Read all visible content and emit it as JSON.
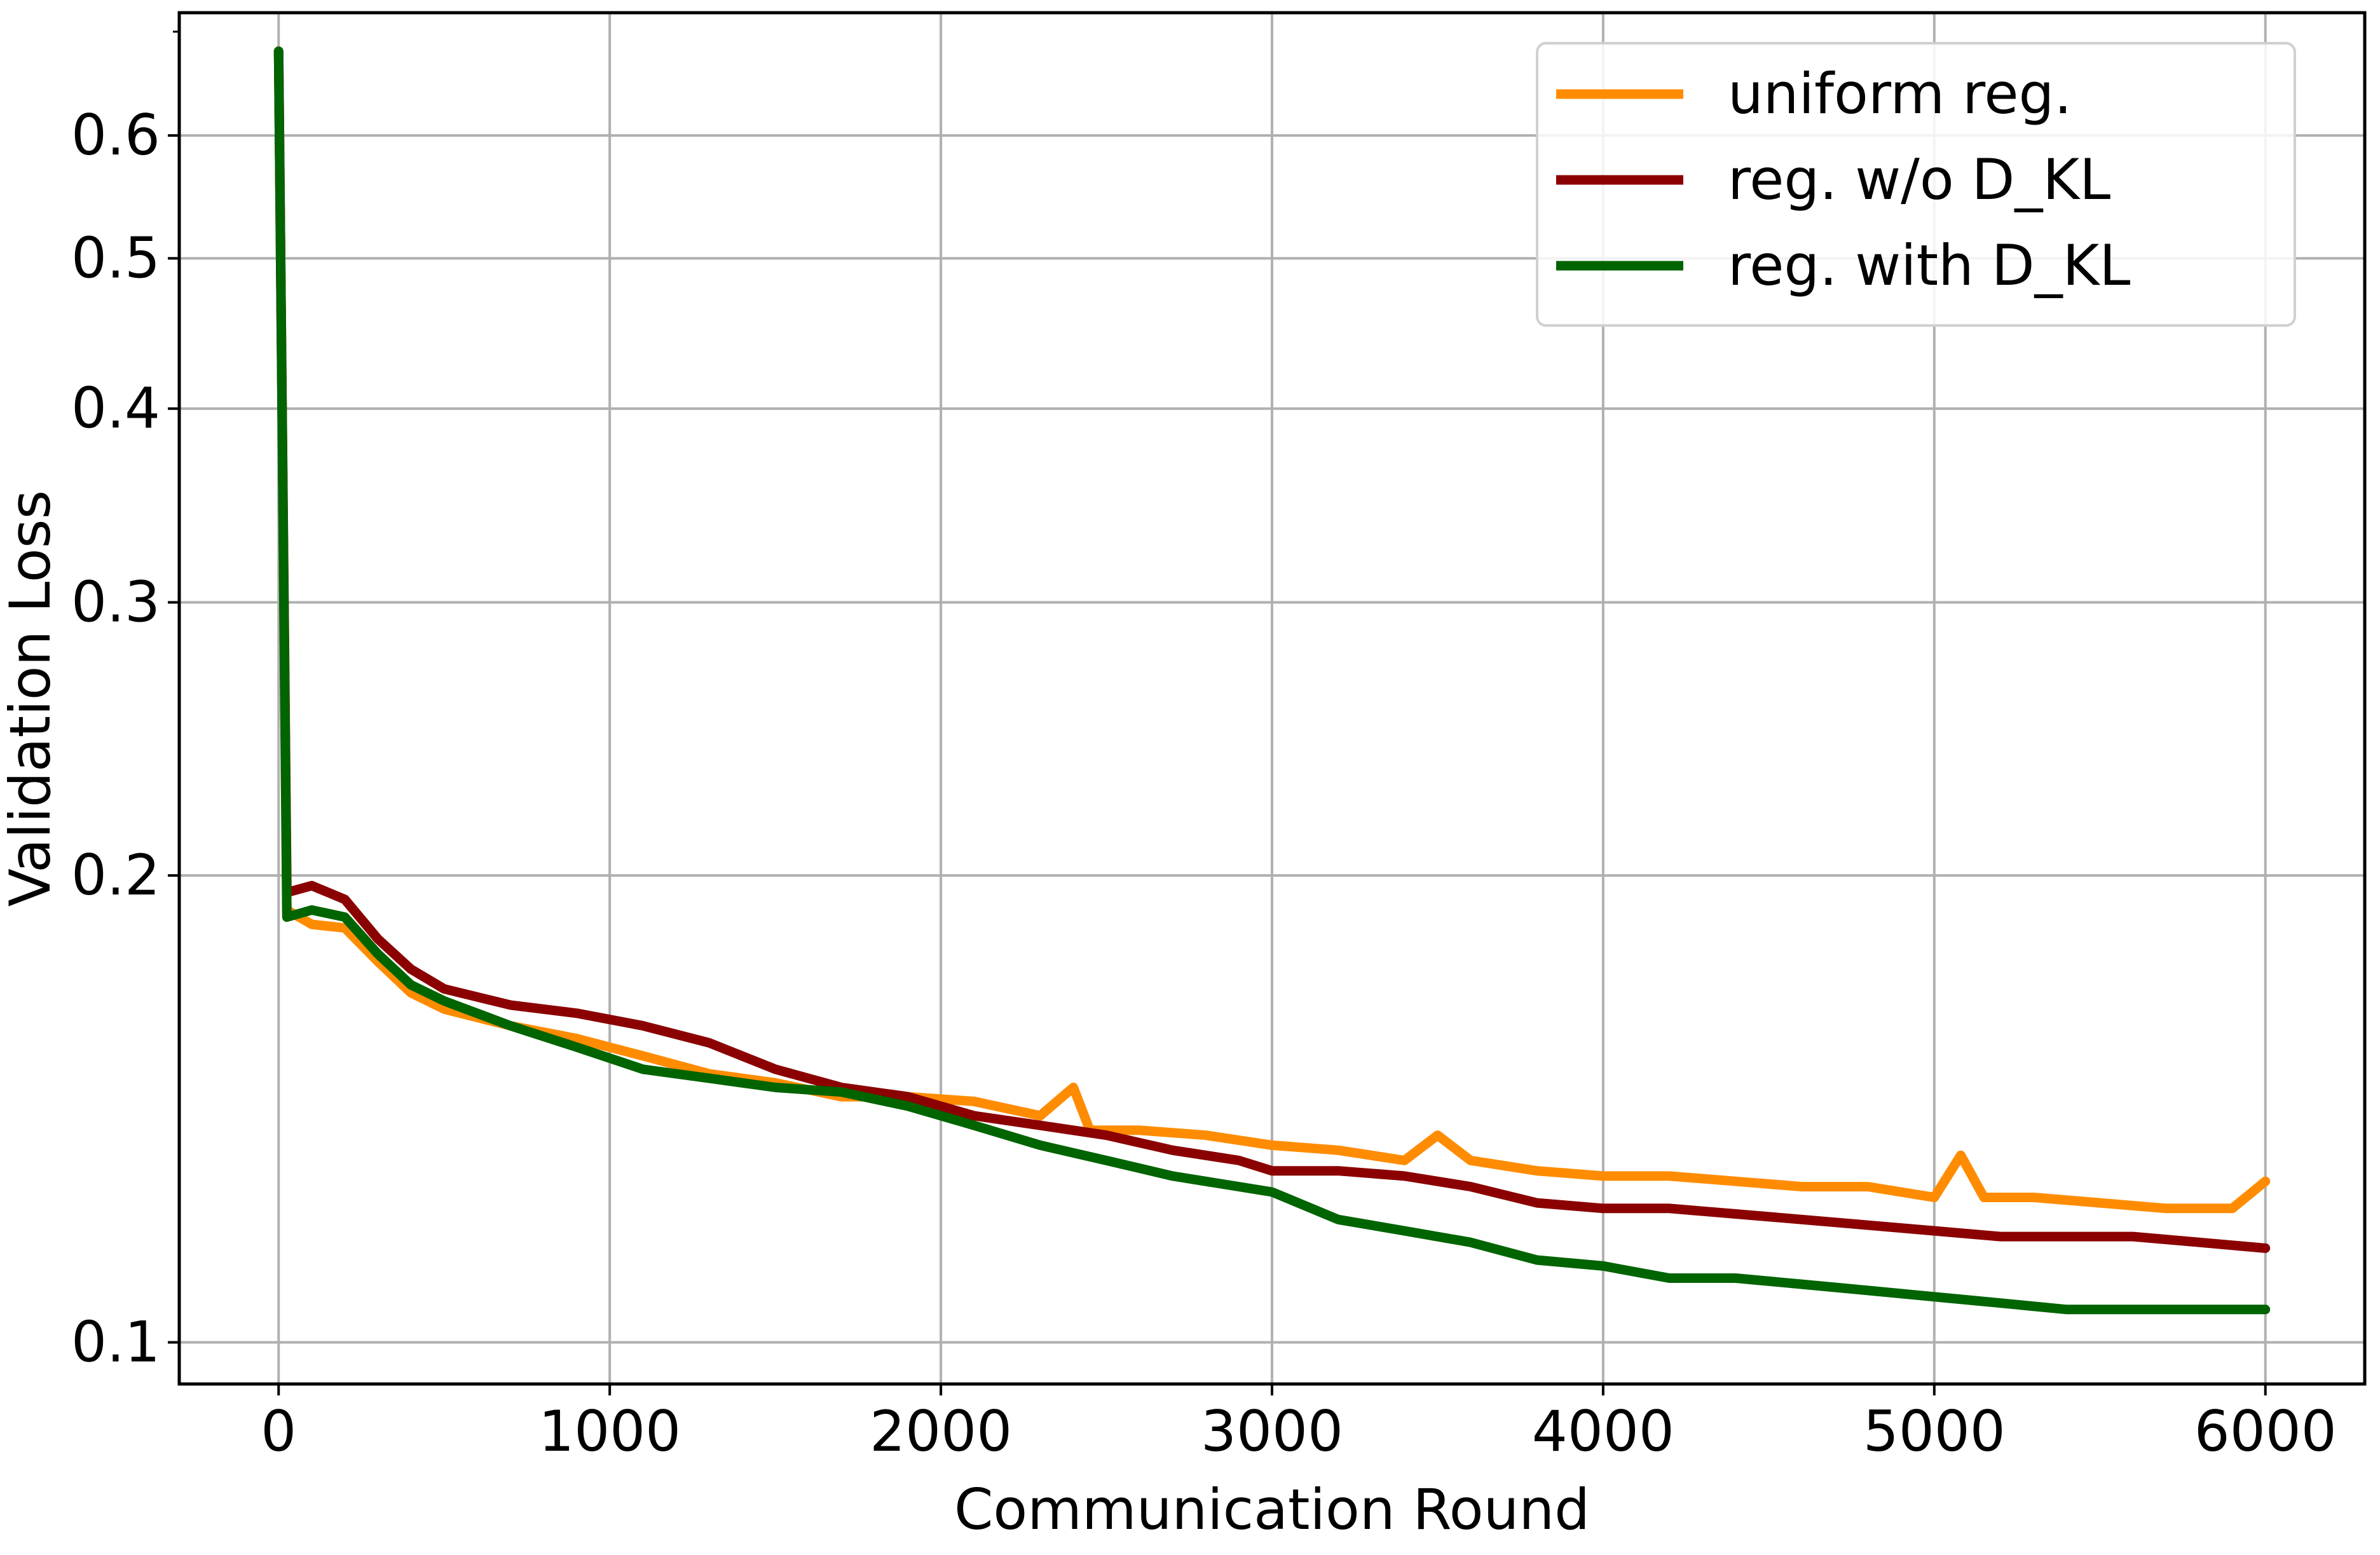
{
  "chart_data": {
    "type": "line",
    "xlabel": "Communication Round",
    "ylabel": "Validation Loss",
    "x_scale": "linear",
    "y_scale": "log",
    "xlim": [
      -300,
      6300
    ],
    "ylim": [
      0.094,
      0.72
    ],
    "x_ticks": [
      0,
      1000,
      2000,
      3000,
      4000,
      5000,
      6000
    ],
    "x_tick_labels": [
      "0",
      "1000",
      "2000",
      "3000",
      "4000",
      "5000",
      "6000"
    ],
    "y_ticks": [
      0.1,
      0.2,
      0.3,
      0.4,
      0.5,
      0.6
    ],
    "y_tick_labels": [
      "0.1",
      "0.2",
      "0.3",
      "0.4",
      "0.5",
      "0.6"
    ],
    "grid": true,
    "legend_position": "top-right",
    "series": [
      {
        "name": "uniform reg.",
        "color": "#FF8C00",
        "points": [
          [
            0,
            0.68
          ],
          [
            25,
            0.19
          ],
          [
            100,
            0.186
          ],
          [
            200,
            0.185
          ],
          [
            300,
            0.176
          ],
          [
            400,
            0.168
          ],
          [
            500,
            0.164
          ],
          [
            700,
            0.16
          ],
          [
            900,
            0.157
          ],
          [
            1100,
            0.153
          ],
          [
            1300,
            0.149
          ],
          [
            1500,
            0.147
          ],
          [
            1700,
            0.144
          ],
          [
            1900,
            0.144
          ],
          [
            2100,
            0.143
          ],
          [
            2300,
            0.14
          ],
          [
            2400,
            0.146
          ],
          [
            2450,
            0.137
          ],
          [
            2600,
            0.137
          ],
          [
            2800,
            0.136
          ],
          [
            3000,
            0.134
          ],
          [
            3200,
            0.133
          ],
          [
            3400,
            0.131
          ],
          [
            3500,
            0.136
          ],
          [
            3600,
            0.131
          ],
          [
            3800,
            0.129
          ],
          [
            4000,
            0.128
          ],
          [
            4200,
            0.128
          ],
          [
            4400,
            0.127
          ],
          [
            4600,
            0.126
          ],
          [
            4800,
            0.126
          ],
          [
            5000,
            0.124
          ],
          [
            5080,
            0.132
          ],
          [
            5150,
            0.124
          ],
          [
            5300,
            0.124
          ],
          [
            5500,
            0.123
          ],
          [
            5700,
            0.122
          ],
          [
            5900,
            0.122
          ],
          [
            6000,
            0.127
          ]
        ]
      },
      {
        "name": "reg. w/o D_KL",
        "color": "#8B0000",
        "points": [
          [
            0,
            0.68
          ],
          [
            25,
            0.195
          ],
          [
            100,
            0.197
          ],
          [
            200,
            0.193
          ],
          [
            300,
            0.182
          ],
          [
            400,
            0.174
          ],
          [
            500,
            0.169
          ],
          [
            700,
            0.165
          ],
          [
            900,
            0.163
          ],
          [
            1100,
            0.16
          ],
          [
            1300,
            0.156
          ],
          [
            1500,
            0.15
          ],
          [
            1700,
            0.146
          ],
          [
            1900,
            0.144
          ],
          [
            2100,
            0.14
          ],
          [
            2300,
            0.138
          ],
          [
            2500,
            0.136
          ],
          [
            2700,
            0.133
          ],
          [
            2900,
            0.131
          ],
          [
            3000,
            0.129
          ],
          [
            3200,
            0.129
          ],
          [
            3400,
            0.128
          ],
          [
            3600,
            0.126
          ],
          [
            3800,
            0.123
          ],
          [
            4000,
            0.122
          ],
          [
            4200,
            0.122
          ],
          [
            4400,
            0.121
          ],
          [
            4600,
            0.12
          ],
          [
            4800,
            0.119
          ],
          [
            5000,
            0.118
          ],
          [
            5200,
            0.117
          ],
          [
            5400,
            0.117
          ],
          [
            5600,
            0.117
          ],
          [
            5800,
            0.116
          ],
          [
            6000,
            0.115
          ]
        ]
      },
      {
        "name": "reg. with D_KL",
        "color": "#006400",
        "points": [
          [
            0,
            0.68
          ],
          [
            25,
            0.188
          ],
          [
            100,
            0.19
          ],
          [
            200,
            0.188
          ],
          [
            300,
            0.178
          ],
          [
            400,
            0.17
          ],
          [
            500,
            0.166
          ],
          [
            700,
            0.16
          ],
          [
            900,
            0.155
          ],
          [
            1100,
            0.15
          ],
          [
            1300,
            0.148
          ],
          [
            1500,
            0.146
          ],
          [
            1700,
            0.145
          ],
          [
            1900,
            0.142
          ],
          [
            2100,
            0.138
          ],
          [
            2300,
            0.134
          ],
          [
            2500,
            0.131
          ],
          [
            2700,
            0.128
          ],
          [
            2900,
            0.126
          ],
          [
            3000,
            0.125
          ],
          [
            3200,
            0.12
          ],
          [
            3400,
            0.118
          ],
          [
            3600,
            0.116
          ],
          [
            3800,
            0.113
          ],
          [
            4000,
            0.112
          ],
          [
            4200,
            0.11
          ],
          [
            4400,
            0.11
          ],
          [
            4600,
            0.109
          ],
          [
            4800,
            0.108
          ],
          [
            5000,
            0.107
          ],
          [
            5200,
            0.106
          ],
          [
            5400,
            0.105
          ],
          [
            5600,
            0.105
          ],
          [
            5800,
            0.105
          ],
          [
            6000,
            0.105
          ]
        ]
      }
    ]
  }
}
